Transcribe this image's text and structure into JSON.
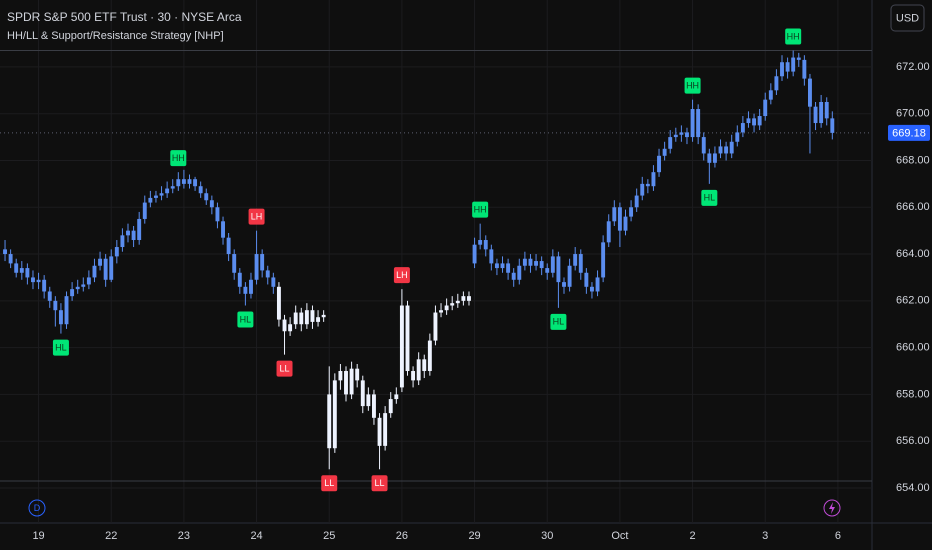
{
  "chart_data": {
    "type": "candlestick",
    "title": "SPDR S&P 500 ETF Trust · 30 · NYSE Arca",
    "subtitle": "HH/LL & Support/Resistance Strategy [NHP]",
    "currency": "USD",
    "xlim": [
      -0.9,
      155.1
    ],
    "ylim": [
      653.7,
      674.86
    ],
    "yticks": [
      {
        "value": 654,
        "label": "654.00"
      },
      {
        "value": 656,
        "label": "656.00"
      },
      {
        "value": 658,
        "label": "658.00"
      },
      {
        "value": 660,
        "label": "660.00"
      },
      {
        "value": 662,
        "label": "662.00"
      },
      {
        "value": 664,
        "label": "664.00"
      },
      {
        "value": 666,
        "label": "666.00"
      },
      {
        "value": 668,
        "label": "668.00"
      },
      {
        "value": 670,
        "label": "670.00"
      },
      {
        "value": 672,
        "label": "672.00"
      }
    ],
    "xticks": [
      {
        "value": 6,
        "label": "19"
      },
      {
        "value": 19,
        "label": "22"
      },
      {
        "value": 32,
        "label": "23"
      },
      {
        "value": 45,
        "label": "24"
      },
      {
        "value": 58,
        "label": "25"
      },
      {
        "value": 71,
        "label": "26"
      },
      {
        "value": 84,
        "label": "29"
      },
      {
        "value": 97,
        "label": "30"
      },
      {
        "value": 110,
        "label": "Oct"
      },
      {
        "value": 123,
        "label": "2"
      },
      {
        "value": 136,
        "label": "3"
      },
      {
        "value": 149,
        "label": "6"
      }
    ],
    "grid": true,
    "support_resistance": [
      672.7,
      654.3
    ],
    "series": [
      {
        "color": "#5b8def",
        "start": 0,
        "ohlc": [
          [
            664.2,
            664.6,
            663.7,
            664.0
          ],
          [
            664.0,
            664.2,
            663.4,
            663.6
          ],
          [
            663.6,
            663.8,
            663.0,
            663.2
          ],
          [
            663.2,
            663.7,
            662.9,
            663.4
          ],
          [
            663.4,
            663.6,
            662.7,
            663.0
          ],
          [
            663.0,
            663.3,
            662.5,
            662.8
          ],
          [
            662.8,
            663.2,
            662.5,
            662.9
          ],
          [
            662.9,
            663.1,
            662.1,
            662.4
          ],
          [
            662.4,
            662.6,
            661.7,
            662.0
          ],
          [
            662.0,
            662.2,
            660.9,
            661.6
          ],
          [
            661.6,
            661.9,
            660.6,
            661.0
          ],
          [
            661.0,
            662.4,
            660.8,
            662.2
          ],
          [
            662.2,
            662.8,
            662.0,
            662.5
          ],
          [
            662.5,
            662.9,
            662.3,
            662.6
          ],
          [
            662.6,
            663.0,
            662.4,
            662.7
          ],
          [
            662.7,
            663.3,
            662.5,
            663.0
          ],
          [
            663.0,
            663.8,
            662.8,
            663.5
          ],
          [
            663.5,
            664.1,
            663.3,
            663.8
          ],
          [
            663.8,
            664.0,
            662.6,
            662.9
          ],
          [
            662.9,
            664.2,
            662.8,
            663.9
          ],
          [
            663.9,
            664.6,
            663.6,
            664.3
          ],
          [
            664.3,
            665.1,
            664.1,
            664.8
          ],
          [
            664.8,
            665.3,
            664.5,
            665.0
          ],
          [
            665.0,
            665.2,
            664.3,
            664.6
          ],
          [
            664.6,
            665.8,
            664.4,
            665.5
          ],
          [
            665.5,
            666.5,
            665.3,
            666.2
          ],
          [
            666.2,
            666.7,
            666.0,
            666.4
          ],
          [
            666.4,
            666.7,
            666.2,
            666.5
          ],
          [
            666.5,
            666.9,
            666.3,
            666.6
          ],
          [
            666.6,
            667.1,
            666.4,
            666.8
          ],
          [
            666.8,
            667.2,
            666.6,
            666.9
          ],
          [
            666.9,
            667.5,
            666.7,
            667.2
          ],
          [
            667.2,
            667.6,
            666.8,
            667.0
          ],
          [
            667.0,
            667.4,
            666.8,
            667.2
          ],
          [
            667.2,
            667.3,
            666.7,
            666.9
          ],
          [
            666.9,
            667.1,
            666.4,
            666.6
          ],
          [
            666.6,
            666.8,
            666.1,
            666.3
          ],
          [
            666.3,
            666.5,
            665.7,
            666.0
          ],
          [
            666.0,
            666.2,
            665.1,
            665.4
          ],
          [
            665.4,
            665.6,
            664.4,
            664.7
          ],
          [
            664.7,
            664.9,
            663.7,
            664.0
          ],
          [
            664.0,
            664.2,
            662.9,
            663.2
          ],
          [
            663.2,
            663.4,
            662.3,
            662.6
          ],
          [
            662.6,
            662.8,
            661.8,
            662.3
          ],
          [
            662.3,
            663.2,
            662.1,
            662.9
          ],
          [
            662.9,
            665.0,
            662.7,
            664.0
          ],
          [
            664.0,
            664.2,
            663.0,
            663.3
          ],
          [
            663.3,
            663.5,
            662.7,
            663.0
          ],
          [
            663.0,
            663.2,
            662.3,
            662.6
          ]
        ]
      },
      {
        "color": "#eef3ff",
        "start": 49,
        "ohlc": [
          [
            662.6,
            662.8,
            660.9,
            661.2
          ],
          [
            661.2,
            661.4,
            659.7,
            660.7
          ],
          [
            660.7,
            661.3,
            660.5,
            661.0
          ],
          [
            661.0,
            661.8,
            660.8,
            661.5
          ],
          [
            661.5,
            661.7,
            660.7,
            661.0
          ],
          [
            661.0,
            661.9,
            660.8,
            661.6
          ],
          [
            661.6,
            661.8,
            660.8,
            661.1
          ],
          [
            661.1,
            661.6,
            660.9,
            661.3
          ],
          [
            661.3,
            661.6,
            661.1,
            661.4
          ],
          [
            658.0,
            659.2,
            654.8,
            655.7
          ],
          [
            655.7,
            658.9,
            655.5,
            658.6
          ],
          [
            658.6,
            659.3,
            658.2,
            659.0
          ],
          [
            659.0,
            659.2,
            657.7,
            658.0
          ],
          [
            658.0,
            659.4,
            657.8,
            659.1
          ],
          [
            659.1,
            659.3,
            658.3,
            658.6
          ],
          [
            658.6,
            658.8,
            657.2,
            657.5
          ],
          [
            657.5,
            658.3,
            657.3,
            658.0
          ],
          [
            658.0,
            658.2,
            656.7,
            657.0
          ],
          [
            657.0,
            657.2,
            654.8,
            655.8
          ],
          [
            655.8,
            657.5,
            655.6,
            657.2
          ],
          [
            657.2,
            658.1,
            657.0,
            657.8
          ],
          [
            657.8,
            658.3,
            657.6,
            658.0
          ],
          [
            658.3,
            662.5,
            658.1,
            661.8
          ],
          [
            661.8,
            662.0,
            658.8,
            659.0
          ],
          [
            659.0,
            659.2,
            658.3,
            658.6
          ],
          [
            658.6,
            659.8,
            658.4,
            659.5
          ],
          [
            659.5,
            659.7,
            658.7,
            659.0
          ],
          [
            659.0,
            660.6,
            658.8,
            660.3
          ],
          [
            660.3,
            661.8,
            660.1,
            661.5
          ],
          [
            661.5,
            661.9,
            661.3,
            661.6
          ],
          [
            661.6,
            662.1,
            661.4,
            661.8
          ],
          [
            661.8,
            662.2,
            661.6,
            661.9
          ],
          [
            661.9,
            662.3,
            661.7,
            662.0
          ],
          [
            662.0,
            662.4,
            661.8,
            662.2
          ],
          [
            662.2,
            662.4,
            661.8,
            662.0
          ]
        ]
      },
      {
        "color": "#5b8def",
        "start": 84,
        "ohlc": [
          [
            663.6,
            664.7,
            663.4,
            664.4
          ],
          [
            664.4,
            665.3,
            664.2,
            664.6
          ],
          [
            664.6,
            664.8,
            663.9,
            664.2
          ],
          [
            664.2,
            664.4,
            663.3,
            663.6
          ],
          [
            663.6,
            663.8,
            663.1,
            663.4
          ],
          [
            663.4,
            663.9,
            663.2,
            663.6
          ],
          [
            663.6,
            663.8,
            662.9,
            663.2
          ],
          [
            663.2,
            663.4,
            662.6,
            662.9
          ],
          [
            662.9,
            663.8,
            662.7,
            663.5
          ],
          [
            663.5,
            664.1,
            663.3,
            663.8
          ],
          [
            663.8,
            664.0,
            663.2,
            663.5
          ],
          [
            663.5,
            664.0,
            663.3,
            663.7
          ],
          [
            663.7,
            663.9,
            663.1,
            663.4
          ],
          [
            663.4,
            663.6,
            662.9,
            663.2
          ],
          [
            663.2,
            664.2,
            663.0,
            663.9
          ],
          [
            663.9,
            664.1,
            661.7,
            662.8
          ],
          [
            662.8,
            663.0,
            662.3,
            662.6
          ],
          [
            662.6,
            663.8,
            662.4,
            663.5
          ],
          [
            663.5,
            664.3,
            663.3,
            664.0
          ],
          [
            664.0,
            664.2,
            662.9,
            663.2
          ],
          [
            663.2,
            663.4,
            662.3,
            662.6
          ],
          [
            662.6,
            662.8,
            662.1,
            662.4
          ],
          [
            662.4,
            663.3,
            662.2,
            663.0
          ],
          [
            663.0,
            664.8,
            662.8,
            664.5
          ],
          [
            664.5,
            665.7,
            664.3,
            665.4
          ],
          [
            665.4,
            666.3,
            665.2,
            666.0
          ],
          [
            666.0,
            666.2,
            664.3,
            665.0
          ],
          [
            665.0,
            665.9,
            664.8,
            665.6
          ],
          [
            665.6,
            666.3,
            665.4,
            666.0
          ],
          [
            666.0,
            666.8,
            665.8,
            666.5
          ],
          [
            666.5,
            667.3,
            666.3,
            667.0
          ],
          [
            667.0,
            667.2,
            666.6,
            666.9
          ],
          [
            666.9,
            667.8,
            666.7,
            667.5
          ],
          [
            667.5,
            668.5,
            667.3,
            668.2
          ],
          [
            668.2,
            668.8,
            668.0,
            668.5
          ],
          [
            668.5,
            669.3,
            668.3,
            669.0
          ],
          [
            669.0,
            669.4,
            668.8,
            669.1
          ],
          [
            669.1,
            669.5,
            668.8,
            669.2
          ],
          [
            669.2,
            669.4,
            668.7,
            669.0
          ],
          [
            669.0,
            670.6,
            668.8,
            670.2
          ],
          [
            670.2,
            670.4,
            668.7,
            669.0
          ],
          [
            669.0,
            669.2,
            668.0,
            668.3
          ],
          [
            668.3,
            668.5,
            667.0,
            667.9
          ],
          [
            667.9,
            668.6,
            667.7,
            668.3
          ],
          [
            668.3,
            668.9,
            668.1,
            668.6
          ],
          [
            668.6,
            668.8,
            668.0,
            668.3
          ],
          [
            668.3,
            669.1,
            668.1,
            668.8
          ],
          [
            668.8,
            669.5,
            668.6,
            669.2
          ],
          [
            669.2,
            669.9,
            669.0,
            669.6
          ],
          [
            669.6,
            670.1,
            669.4,
            669.8
          ],
          [
            669.8,
            670.0,
            669.2,
            669.5
          ],
          [
            669.5,
            670.2,
            669.3,
            669.9
          ],
          [
            669.9,
            670.9,
            669.7,
            670.6
          ],
          [
            670.6,
            671.3,
            670.4,
            671.0
          ],
          [
            671.0,
            671.9,
            670.8,
            671.6
          ],
          [
            671.6,
            672.5,
            671.4,
            672.2
          ],
          [
            672.2,
            672.4,
            671.5,
            671.8
          ],
          [
            671.8,
            672.7,
            671.6,
            672.4
          ],
          [
            672.4,
            672.6,
            672.0,
            672.3
          ],
          [
            672.3,
            672.5,
            671.2,
            671.5
          ],
          [
            671.5,
            671.7,
            668.3,
            670.3
          ],
          [
            670.3,
            670.5,
            669.3,
            669.6
          ],
          [
            669.6,
            670.8,
            669.4,
            670.5
          ],
          [
            670.5,
            670.7,
            669.5,
            669.8
          ],
          [
            669.8,
            670.1,
            668.9,
            669.18
          ]
        ]
      }
    ],
    "annotations": [
      {
        "text": "HL",
        "index": 10
      },
      {
        "text": "HH",
        "index": 31
      },
      {
        "text": "HL",
        "index": 43
      },
      {
        "text": "LH",
        "index": 45
      },
      {
        "text": "LL",
        "index": 50
      },
      {
        "text": "LL",
        "index": 58
      },
      {
        "text": "LL",
        "index": 67
      },
      {
        "text": "LH",
        "index": 71
      },
      {
        "text": "HH",
        "index": 85
      },
      {
        "text": "HL",
        "index": 99
      },
      {
        "text": "HH",
        "index": 123
      },
      {
        "text": "HL",
        "index": 126
      },
      {
        "text": "HH",
        "index": 141
      }
    ]
  }
}
